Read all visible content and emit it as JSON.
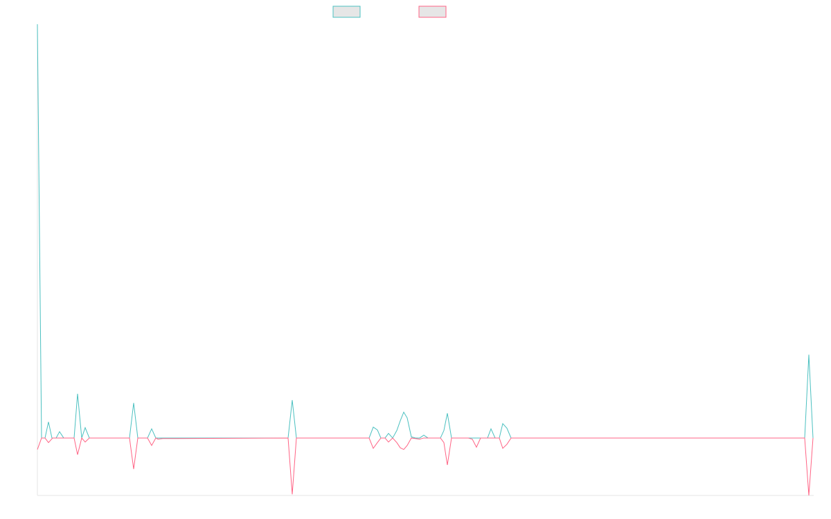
{
  "chart_data": {
    "type": "line",
    "xlim": [
      0,
      1120
    ],
    "ylim": [
      -10,
      72
    ],
    "series": [
      {
        "color": "#4bc0c0",
        "x": [
          0,
          6,
          11,
          16,
          21,
          27,
          32,
          38,
          53,
          58,
          64,
          69,
          75,
          133,
          139,
          145,
          159,
          165,
          171,
          362,
          368,
          374,
          479,
          485,
          491,
          496,
          502,
          507,
          513,
          519,
          524,
          529,
          534,
          540,
          546,
          552,
          558,
          564,
          582,
          587,
          592,
          598,
          645,
          650,
          655,
          661,
          667,
          672,
          678,
          684,
          1108,
          1114,
          1120
        ],
        "values": [
          72,
          0,
          0,
          2.8,
          0,
          0,
          1.1,
          0,
          0,
          7.7,
          0,
          1.8,
          0,
          0,
          6.1,
          0,
          0,
          1.6,
          0,
          0,
          6.6,
          0,
          0,
          1.9,
          1.4,
          0,
          0,
          0.8,
          0,
          1.3,
          3,
          4.5,
          3.5,
          0.2,
          0,
          0,
          0.5,
          0,
          0,
          1.3,
          4.3,
          0,
          0,
          0,
          1.6,
          0,
          0,
          2.5,
          1.7,
          0,
          0,
          14.5,
          0
        ]
      },
      {
        "color": "#ff6384",
        "x": [
          0,
          6,
          11,
          16,
          22,
          53,
          58,
          64,
          69,
          75,
          133,
          139,
          145,
          159,
          165,
          171,
          174,
          181,
          362,
          368,
          374,
          479,
          485,
          491,
          496,
          502,
          507,
          513,
          519,
          524,
          529,
          534,
          540,
          552,
          558,
          582,
          587,
          592,
          598,
          622,
          628,
          634,
          640,
          667,
          672,
          678,
          684,
          1108,
          1114,
          1120
        ],
        "values": [
          -2,
          0,
          0,
          -0.8,
          0,
          0,
          -2.9,
          0,
          -0.7,
          0,
          0,
          -5.4,
          0,
          0,
          -1.3,
          0,
          -0.2,
          -0.1,
          0,
          -9.8,
          0,
          0,
          -1.8,
          -0.8,
          0,
          0,
          -0.7,
          0,
          -0.8,
          -1.7,
          -2,
          -1.3,
          0,
          -0.2,
          0,
          0,
          -0.8,
          -4.7,
          0,
          0,
          -0.2,
          -1.6,
          0,
          0,
          -1.8,
          -1.1,
          0,
          0,
          -10,
          0
        ]
      }
    ]
  }
}
